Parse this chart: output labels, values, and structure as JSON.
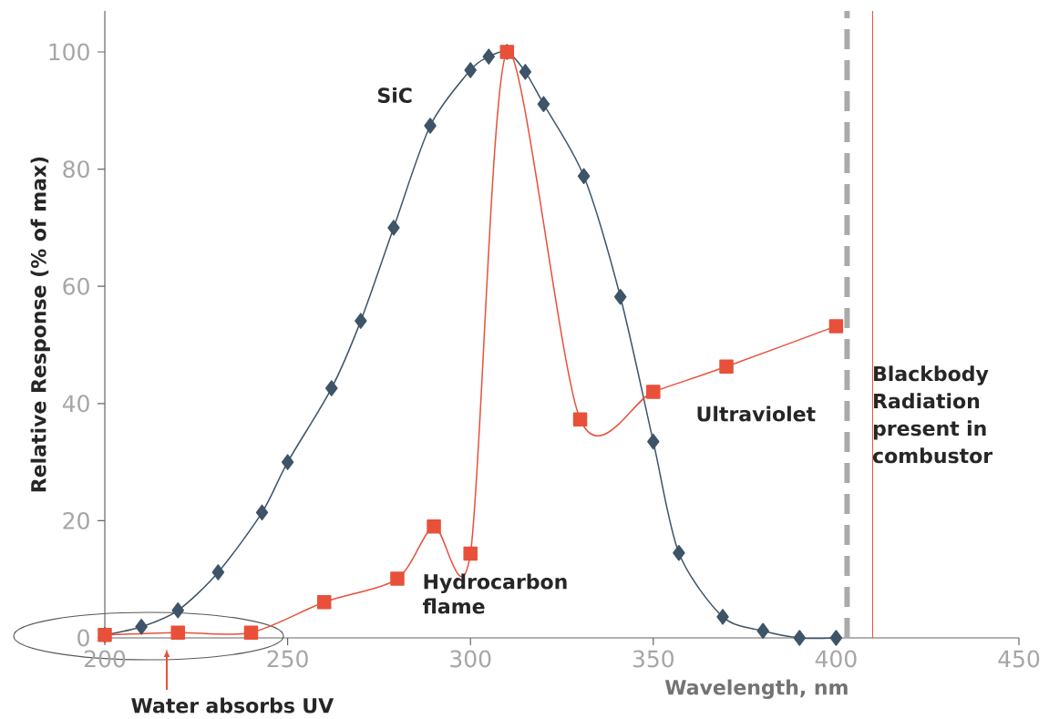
{
  "chart_data": {
    "type": "line",
    "xlabel": "Wavelength, nm",
    "ylabel": "Relative Response (% of max)",
    "xlim": [
      200,
      450
    ],
    "xticks": [
      200,
      250,
      300,
      350,
      400,
      450
    ],
    "ylim": [
      0,
      107
    ],
    "yticks": [
      0,
      20,
      40,
      60,
      80,
      100
    ],
    "grid": false,
    "series": [
      {
        "name": "SiC",
        "color": "#3e5468",
        "marker": "diamond",
        "x": [
          200,
          210,
          220,
          231,
          243,
          250,
          262,
          270,
          279,
          289,
          300,
          305,
          310,
          315,
          320,
          331,
          341,
          350,
          357,
          369,
          380,
          390,
          400
        ],
        "values": [
          0.5,
          1.9,
          4.7,
          11.2,
          21.4,
          30,
          42.6,
          54.1,
          70,
          87.4,
          96.9,
          99.2,
          100,
          96.6,
          91.1,
          78.8,
          58.2,
          33.5,
          14.5,
          3.6,
          1.2,
          0,
          0
        ]
      },
      {
        "name": "Hydrocarbon flame",
        "color": "#e8503a",
        "marker": "square",
        "x": [
          200,
          220,
          240,
          260,
          280,
          290,
          300,
          310,
          330,
          350,
          370,
          400
        ],
        "values": [
          0.5,
          0.9,
          0.9,
          6.1,
          10.1,
          19,
          14.4,
          100,
          37.3,
          42,
          46.3,
          53.2
        ]
      }
    ],
    "ref_lines": [
      {
        "axis": "x",
        "value": 403,
        "color": "#aaaaaa",
        "line_style": "dashed"
      },
      {
        "axis": "x",
        "value": 410,
        "color": "#e8503a",
        "line_style": "solid"
      }
    ],
    "annotations": [
      "Ultraviolet",
      {
        "text": "Blackbody Radiation present in combustor",
        "x": 409,
        "y": 47
      },
      "Water absorbs UV"
    ]
  }
}
